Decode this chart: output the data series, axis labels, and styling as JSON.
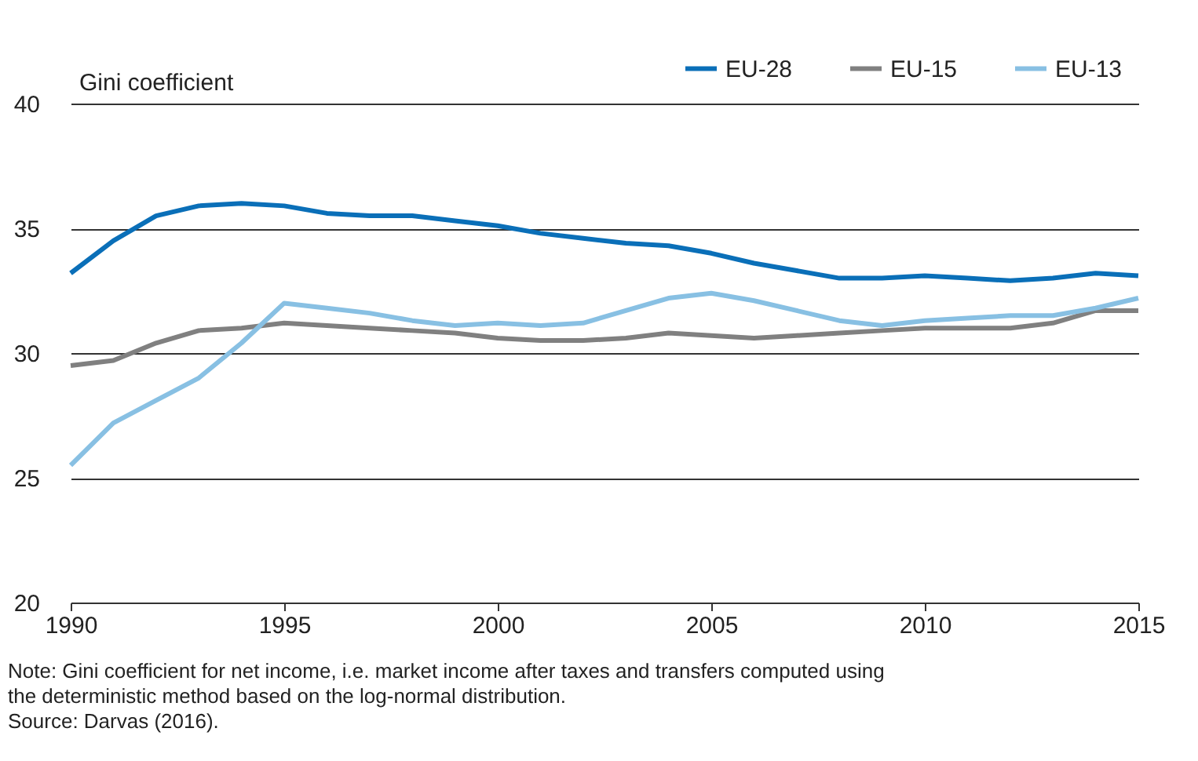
{
  "chart_data": {
    "type": "line",
    "ylabel": "Gini coefficient",
    "x": [
      1990,
      1991,
      1992,
      1993,
      1994,
      1995,
      1996,
      1997,
      1998,
      1999,
      2000,
      2001,
      2002,
      2003,
      2004,
      2005,
      2006,
      2007,
      2008,
      2009,
      2010,
      2011,
      2012,
      2013,
      2014,
      2015
    ],
    "series": [
      {
        "name": "EU-28",
        "color": "#0a6fb8",
        "values": [
          33.2,
          34.5,
          35.5,
          35.9,
          36.0,
          35.9,
          35.6,
          35.5,
          35.5,
          35.3,
          35.1,
          34.8,
          34.6,
          34.4,
          34.3,
          34.0,
          33.6,
          33.3,
          33.0,
          33.0,
          33.1,
          33.0,
          32.9,
          33.0,
          33.2,
          33.1
        ]
      },
      {
        "name": "EU-15",
        "color": "#808080",
        "values": [
          29.5,
          29.7,
          30.4,
          30.9,
          31.0,
          31.2,
          31.1,
          31.0,
          30.9,
          30.8,
          30.6,
          30.5,
          30.5,
          30.6,
          30.8,
          30.7,
          30.6,
          30.7,
          30.8,
          30.9,
          31.0,
          31.0,
          31.0,
          31.2,
          31.7,
          31.7
        ]
      },
      {
        "name": "EU-13",
        "color": "#88c0e3",
        "values": [
          25.5,
          27.2,
          28.1,
          29.0,
          30.4,
          32.0,
          31.8,
          31.6,
          31.3,
          31.1,
          31.2,
          31.1,
          31.2,
          31.7,
          32.2,
          32.4,
          32.1,
          31.7,
          31.3,
          31.1,
          31.3,
          31.4,
          31.5,
          31.5,
          31.8,
          32.2
        ]
      }
    ],
    "xlim": [
      1990,
      2015
    ],
    "xticks": [
      1990,
      1995,
      2000,
      2005,
      2010,
      2015
    ],
    "ylim": [
      20,
      40
    ],
    "yticks": [
      20,
      25,
      30,
      35,
      40
    ],
    "grid": "y",
    "legend": "top right",
    "line_style": "solid",
    "marker": "none",
    "annotations": [
      "Note: Gini coefficient for net income, i.e. market income after taxes and transfers computed using the deterministic method based on the log-normal distribution.",
      "Source: Darvas (2016)."
    ]
  }
}
